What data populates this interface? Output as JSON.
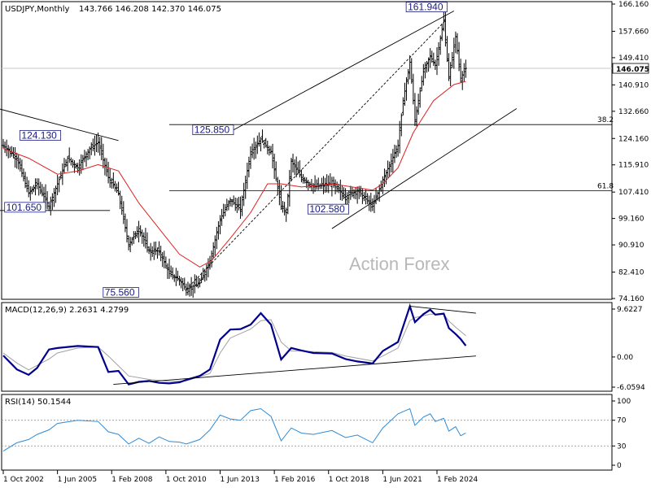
{
  "chart_data": [
    {
      "type": "candlestick",
      "title": "USDJPY,Monthly",
      "ohlc_label": "143.766 146.208 142.370 146.075",
      "current_price": 146.075,
      "current_price_label": "146.075",
      "y_range": [
        74.16,
        166.16
      ],
      "y_tick_labels": [
        "166.160",
        "157.660",
        "149.410",
        "140.910",
        "132.660",
        "124.160",
        "115.910",
        "107.410",
        "99.160",
        "90.910",
        "82.410",
        "74.160"
      ],
      "x_tick_labels": [
        "1 Oct 2002",
        "1 Jun 2005",
        "1 Feb 2008",
        "1 Oct 2010",
        "1 Jun 2013",
        "1 Feb 2016",
        "1 Oct 2018",
        "1 Jun 2021",
        "1 Feb 2024"
      ],
      "price_series": [
        [
          "2002-10",
          122
        ],
        [
          "2003-06",
          118
        ],
        [
          "2004-01",
          107
        ],
        [
          "2004-06",
          110
        ],
        [
          "2005-01",
          103
        ],
        [
          "2005-06",
          110
        ],
        [
          "2005-12",
          118
        ],
        [
          "2006-06",
          115
        ],
        [
          "2007-01",
          121
        ],
        [
          "2007-06",
          123
        ],
        [
          "2007-12",
          112
        ],
        [
          "2008-06",
          107
        ],
        [
          "2008-12",
          91
        ],
        [
          "2009-06",
          96
        ],
        [
          "2009-12",
          89
        ],
        [
          "2010-06",
          89
        ],
        [
          "2010-12",
          82
        ],
        [
          "2011-06",
          80
        ],
        [
          "2011-10",
          77
        ],
        [
          "2012-06",
          79
        ],
        [
          "2012-12",
          86
        ],
        [
          "2013-06",
          99
        ],
        [
          "2013-12",
          105
        ],
        [
          "2014-06",
          102
        ],
        [
          "2014-12",
          120
        ],
        [
          "2015-06",
          124
        ],
        [
          "2015-12",
          120
        ],
        [
          "2016-06",
          103
        ],
        [
          "2016-09",
          101
        ],
        [
          "2016-12",
          117
        ],
        [
          "2017-06",
          112
        ],
        [
          "2018-01",
          109
        ],
        [
          "2018-12",
          110
        ],
        [
          "2019-08",
          106
        ],
        [
          "2020-03",
          108
        ],
        [
          "2020-12",
          103
        ],
        [
          "2021-06",
          111
        ],
        [
          "2022-03",
          122
        ],
        [
          "2022-06",
          136
        ],
        [
          "2022-10",
          148
        ],
        [
          "2023-01",
          130
        ],
        [
          "2023-06",
          145
        ],
        [
          "2023-10",
          150
        ],
        [
          "2024-01",
          147
        ],
        [
          "2024-06",
          161
        ],
        [
          "2024-09",
          143
        ],
        [
          "2025-01",
          156
        ],
        [
          "2025-04",
          143
        ],
        [
          "2025-07",
          146.075
        ]
      ],
      "moving_average": [
        [
          "2002-10",
          121
        ],
        [
          "2004-01",
          118
        ],
        [
          "2005-06",
          113
        ],
        [
          "2006-06",
          114
        ],
        [
          "2007-06",
          116
        ],
        [
          "2008-06",
          114
        ],
        [
          "2009-06",
          104
        ],
        [
          "2010-06",
          96
        ],
        [
          "2011-06",
          88
        ],
        [
          "2012-06",
          84
        ],
        [
          "2013-01",
          86
        ],
        [
          "2013-12",
          93
        ],
        [
          "2014-12",
          101
        ],
        [
          "2015-10",
          110
        ],
        [
          "2016-06",
          110
        ],
        [
          "2017-06",
          109
        ],
        [
          "2018-12",
          110
        ],
        [
          "2019-12",
          109
        ],
        [
          "2020-12",
          108
        ],
        [
          "2021-06",
          110
        ],
        [
          "2022-03",
          115
        ],
        [
          "2022-12",
          126
        ],
        [
          "2023-12",
          136
        ],
        [
          "2024-12",
          141
        ],
        [
          "2025-07",
          142
        ]
      ],
      "annotations": [
        {
          "label": "161.940",
          "value": 161.94
        },
        {
          "label": "124.130",
          "value": 124.13
        },
        {
          "label": "125.850",
          "value": 125.85
        },
        {
          "label": "101.650",
          "value": 101.65
        },
        {
          "label": "102.580",
          "value": 102.58
        },
        {
          "label": "75.560",
          "value": 75.56
        }
      ],
      "fib_levels": [
        {
          "label": "38.2",
          "value": 128.5
        },
        {
          "label": "61.8",
          "value": 107.8
        }
      ],
      "watermark": "Action Forex",
      "colors": {
        "candles": "#000000",
        "ma": "#e02020",
        "trendlines": "#000000",
        "label_text": "#1a1a80",
        "price_tag": "#ffffff"
      }
    },
    {
      "type": "line",
      "title": "MACD(12,26,9) 2.2631 4.2799",
      "y_tick_labels": [
        "9.6227",
        "0.00",
        "-6.0594"
      ],
      "y_range": [
        -6.0594,
        9.6227
      ],
      "macd": [
        [
          "2002-10",
          0.3
        ],
        [
          "2003-06",
          -2.5
        ],
        [
          "2004-01",
          -3.6
        ],
        [
          "2004-06",
          -2.2
        ],
        [
          "2005-01",
          1.5
        ],
        [
          "2005-06",
          1.8
        ],
        [
          "2006-06",
          2.2
        ],
        [
          "2007-06",
          2.0
        ],
        [
          "2007-12",
          -3.0
        ],
        [
          "2008-06",
          -2.8
        ],
        [
          "2008-12",
          -5.5
        ],
        [
          "2009-06",
          -5.0
        ],
        [
          "2009-12",
          -4.8
        ],
        [
          "2010-06",
          -5.2
        ],
        [
          "2010-12",
          -5.3
        ],
        [
          "2011-06",
          -5.1
        ],
        [
          "2011-10",
          -4.6
        ],
        [
          "2012-06",
          -3.8
        ],
        [
          "2012-12",
          -2.5
        ],
        [
          "2013-06",
          3.5
        ],
        [
          "2013-12",
          5.5
        ],
        [
          "2014-06",
          5.6
        ],
        [
          "2014-12",
          6.5
        ],
        [
          "2015-06",
          8.8
        ],
        [
          "2015-12",
          6.5
        ],
        [
          "2016-06",
          -0.5
        ],
        [
          "2016-12",
          1.8
        ],
        [
          "2017-06",
          1.3
        ],
        [
          "2018-01",
          0.8
        ],
        [
          "2018-12",
          0.7
        ],
        [
          "2019-08",
          -0.4
        ],
        [
          "2020-03",
          -0.9
        ],
        [
          "2020-12",
          -1.3
        ],
        [
          "2021-06",
          1.2
        ],
        [
          "2022-03",
          3.0
        ],
        [
          "2022-10",
          10.2
        ],
        [
          "2023-01",
          7.0
        ],
        [
          "2023-06",
          8.6
        ],
        [
          "2023-10",
          9.5
        ],
        [
          "2024-01",
          8.5
        ],
        [
          "2024-06",
          8.7
        ],
        [
          "2024-09",
          5.8
        ],
        [
          "2025-01",
          4.6
        ],
        [
          "2025-04",
          3.6
        ],
        [
          "2025-07",
          2.2631
        ]
      ],
      "signal": [
        [
          "2002-10",
          0.8
        ],
        [
          "2003-06",
          -1.2
        ],
        [
          "2004-01",
          -2.6
        ],
        [
          "2005-01",
          -0.4
        ],
        [
          "2005-06",
          0.8
        ],
        [
          "2006-06",
          1.8
        ],
        [
          "2007-06",
          2.0
        ],
        [
          "2007-12",
          0.2
        ],
        [
          "2008-06",
          -1.8
        ],
        [
          "2008-12",
          -3.8
        ],
        [
          "2009-12",
          -4.5
        ],
        [
          "2010-12",
          -4.9
        ],
        [
          "2011-10",
          -4.8
        ],
        [
          "2012-12",
          -3.3
        ],
        [
          "2013-06",
          0.8
        ],
        [
          "2013-12",
          3.8
        ],
        [
          "2014-12",
          5.6
        ],
        [
          "2015-06",
          7.3
        ],
        [
          "2015-12",
          7.5
        ],
        [
          "2016-06",
          3.0
        ],
        [
          "2016-12",
          1.2
        ],
        [
          "2017-06",
          1.2
        ],
        [
          "2018-12",
          0.9
        ],
        [
          "2019-08",
          0.2
        ],
        [
          "2020-12",
          -0.8
        ],
        [
          "2021-06",
          0.2
        ],
        [
          "2022-03",
          1.8
        ],
        [
          "2022-10",
          7.3
        ],
        [
          "2023-01",
          7.9
        ],
        [
          "2023-10",
          8.6
        ],
        [
          "2024-06",
          8.6
        ],
        [
          "2024-09",
          7.2
        ],
        [
          "2025-01",
          6.0
        ],
        [
          "2025-07",
          4.2799
        ]
      ],
      "colors": {
        "macd": "#00008b",
        "signal": "#a0a0a0"
      }
    },
    {
      "type": "line",
      "title": "RSI(14) 50.1544",
      "y_tick_labels": [
        "100",
        "70",
        "30",
        "0"
      ],
      "y_range": [
        0,
        100
      ],
      "rsi": [
        [
          "2002-10",
          22
        ],
        [
          "2003-06",
          35
        ],
        [
          "2004-01",
          40
        ],
        [
          "2004-06",
          48
        ],
        [
          "2005-01",
          55
        ],
        [
          "2005-06",
          65
        ],
        [
          "2006-06",
          70
        ],
        [
          "2007-06",
          68
        ],
        [
          "2007-12",
          52
        ],
        [
          "2008-06",
          48
        ],
        [
          "2008-12",
          33
        ],
        [
          "2009-06",
          42
        ],
        [
          "2009-12",
          34
        ],
        [
          "2010-06",
          44
        ],
        [
          "2010-12",
          37
        ],
        [
          "2011-06",
          36
        ],
        [
          "2011-10",
          33
        ],
        [
          "2012-06",
          40
        ],
        [
          "2012-12",
          55
        ],
        [
          "2013-06",
          78
        ],
        [
          "2013-12",
          72
        ],
        [
          "2014-06",
          70
        ],
        [
          "2014-12",
          85
        ],
        [
          "2015-06",
          88
        ],
        [
          "2015-12",
          76
        ],
        [
          "2016-06",
          38
        ],
        [
          "2016-12",
          58
        ],
        [
          "2017-06",
          50
        ],
        [
          "2018-01",
          48
        ],
        [
          "2018-12",
          54
        ],
        [
          "2019-08",
          43
        ],
        [
          "2020-03",
          47
        ],
        [
          "2020-12",
          35
        ],
        [
          "2021-06",
          58
        ],
        [
          "2022-03",
          80
        ],
        [
          "2022-10",
          88
        ],
        [
          "2023-01",
          62
        ],
        [
          "2023-06",
          75
        ],
        [
          "2023-10",
          80
        ],
        [
          "2024-01",
          68
        ],
        [
          "2024-06",
          73
        ],
        [
          "2024-09",
          53
        ],
        [
          "2025-01",
          60
        ],
        [
          "2025-04",
          46
        ],
        [
          "2025-07",
          50.1544
        ]
      ],
      "colors": {
        "rsi": "#2e8bd6"
      }
    }
  ]
}
